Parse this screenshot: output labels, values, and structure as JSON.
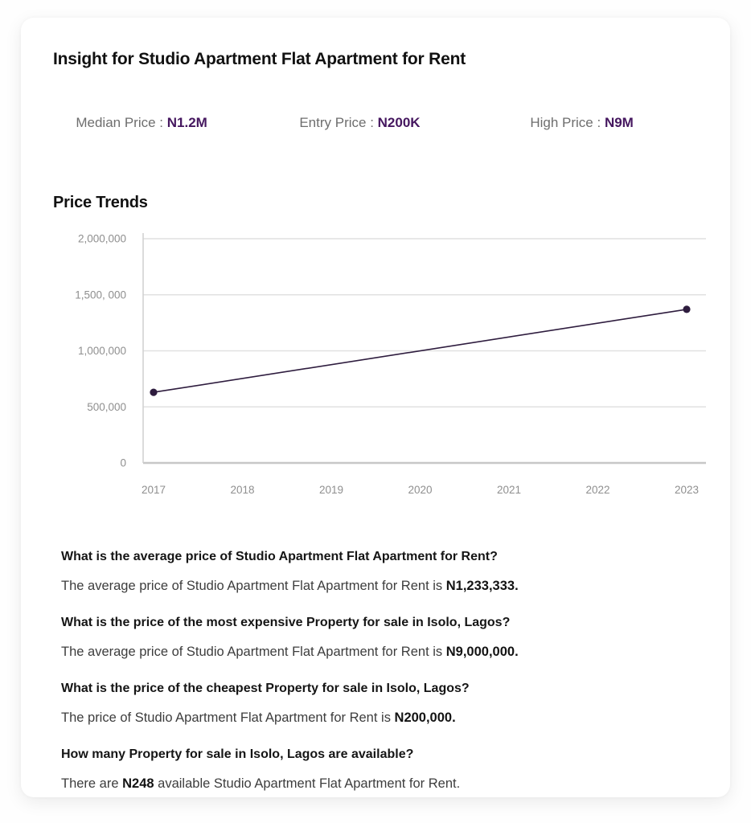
{
  "page": {
    "title": "Insight for Studio Apartment Flat Apartment for Rent"
  },
  "stats": {
    "separator": " : ",
    "items": [
      {
        "label": "Median Price",
        "value": "N1.2M"
      },
      {
        "label": "Entry Price",
        "value": "N200K"
      },
      {
        "label": "High Price",
        "value": "N9M"
      }
    ]
  },
  "colors": {
    "accent_purple": "#45175f",
    "line": "#2e1c3e",
    "grid": "#e1e1e1",
    "axis_bottom": "#c7c7c7",
    "axis_left": "#cfcfcf",
    "tick_text": "#8f8f8f"
  },
  "chart_data": {
    "type": "line",
    "title": "Price Trends",
    "categories": [
      2017,
      2018,
      2019,
      2020,
      2021,
      2022,
      2023
    ],
    "x_tick_labels": [
      "2017",
      "2018",
      "2019",
      "2020",
      "2021",
      "2022",
      "2023"
    ],
    "y_ticks": [
      0,
      500000,
      1000000,
      1500000,
      2000000
    ],
    "y_tick_labels": [
      "0",
      "500,000",
      "1,000,000",
      "1,500, 000",
      "2,000,000"
    ],
    "ylim": [
      0,
      2000000
    ],
    "grid": "horizontal",
    "legend": false,
    "series": [
      {
        "name": "Price",
        "points": [
          {
            "x": 2017,
            "y": 630000
          },
          {
            "x": 2023,
            "y": 1370000
          }
        ]
      }
    ]
  },
  "faq": {
    "items": [
      {
        "question": "What is the average price of Studio Apartment Flat Apartment for Rent?",
        "answer_prefix": "The average price of Studio Apartment Flat Apartment for Rent is ",
        "answer_value": "N1,233,333.",
        "answer_suffix": ""
      },
      {
        "question": "What is the price of the most expensive Property for sale in Isolo, Lagos?",
        "answer_prefix": "The average price of Studio Apartment Flat Apartment for Rent is ",
        "answer_value": "N9,000,000.",
        "answer_suffix": ""
      },
      {
        "question": "What is the price of the cheapest Property for sale in Isolo, Lagos?",
        "answer_prefix": "The price of Studio Apartment Flat Apartment for Rent is ",
        "answer_value": "N200,000.",
        "answer_suffix": ""
      },
      {
        "question": "How many Property for sale in Isolo, Lagos are available?",
        "answer_prefix": "There are ",
        "answer_value": "N248",
        "answer_suffix": " available Studio Apartment Flat Apartment for Rent."
      }
    ]
  }
}
